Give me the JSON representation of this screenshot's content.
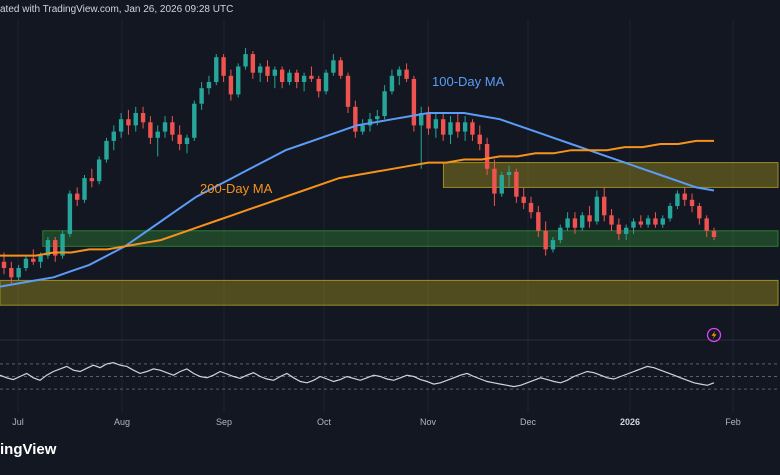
{
  "header": {
    "text": "ated with TradingView.com, Jan 26, 2026 09:28 UTC"
  },
  "brand": {
    "logo_text": "ingView"
  },
  "colors": {
    "background": "#131722",
    "up": "#26a69a",
    "down": "#ef5350",
    "ma100": "#5b9cf6",
    "ma200": "#f7931a",
    "zone_yellow": "#9c8f1f",
    "zone_green": "#2e7d32",
    "rsi": "#d1d4dc",
    "grid": "#1f2330"
  },
  "icons": {
    "replay": "lightning-bolt-icon"
  },
  "chart_data": [
    {
      "type": "candlestick",
      "x_labels": [
        "Jul",
        "Aug",
        "Sep",
        "Oct",
        "Nov",
        "Dec",
        "2026",
        "Feb"
      ],
      "x_labels_bold": [
        "2026"
      ],
      "series_labels": {
        "ma100": "100-Day MA",
        "ma200": "200-Day MA"
      },
      "ylim": [
        0,
        100
      ],
      "candles": [
        {
          "o": 22,
          "h": 25,
          "l": 18,
          "c": 20
        },
        {
          "o": 20,
          "h": 22,
          "l": 15,
          "c": 17
        },
        {
          "o": 17,
          "h": 21,
          "l": 16,
          "c": 20
        },
        {
          "o": 20,
          "h": 24,
          "l": 19,
          "c": 23
        },
        {
          "o": 23,
          "h": 26,
          "l": 21,
          "c": 22
        },
        {
          "o": 22,
          "h": 25,
          "l": 20,
          "c": 24
        },
        {
          "o": 24,
          "h": 30,
          "l": 23,
          "c": 29
        },
        {
          "o": 29,
          "h": 30,
          "l": 22,
          "c": 24
        },
        {
          "o": 24,
          "h": 32,
          "l": 23,
          "c": 31
        },
        {
          "o": 31,
          "h": 45,
          "l": 30,
          "c": 44
        },
        {
          "o": 44,
          "h": 46,
          "l": 40,
          "c": 42
        },
        {
          "o": 42,
          "h": 50,
          "l": 41,
          "c": 49
        },
        {
          "o": 49,
          "h": 52,
          "l": 46,
          "c": 48
        },
        {
          "o": 48,
          "h": 56,
          "l": 47,
          "c": 55
        },
        {
          "o": 55,
          "h": 62,
          "l": 54,
          "c": 61
        },
        {
          "o": 61,
          "h": 66,
          "l": 58,
          "c": 64
        },
        {
          "o": 64,
          "h": 70,
          "l": 62,
          "c": 68
        },
        {
          "o": 68,
          "h": 71,
          "l": 63,
          "c": 66
        },
        {
          "o": 66,
          "h": 72,
          "l": 64,
          "c": 70
        },
        {
          "o": 70,
          "h": 72,
          "l": 65,
          "c": 67
        },
        {
          "o": 67,
          "h": 69,
          "l": 60,
          "c": 62
        },
        {
          "o": 62,
          "h": 66,
          "l": 56,
          "c": 64
        },
        {
          "o": 64,
          "h": 69,
          "l": 62,
          "c": 67
        },
        {
          "o": 67,
          "h": 69,
          "l": 61,
          "c": 63
        },
        {
          "o": 63,
          "h": 66,
          "l": 58,
          "c": 60
        },
        {
          "o": 60,
          "h": 63,
          "l": 57,
          "c": 62
        },
        {
          "o": 62,
          "h": 74,
          "l": 61,
          "c": 73
        },
        {
          "o": 73,
          "h": 80,
          "l": 71,
          "c": 78
        },
        {
          "o": 78,
          "h": 82,
          "l": 76,
          "c": 80
        },
        {
          "o": 80,
          "h": 89,
          "l": 79,
          "c": 88
        },
        {
          "o": 88,
          "h": 89,
          "l": 80,
          "c": 82
        },
        {
          "o": 82,
          "h": 84,
          "l": 74,
          "c": 76
        },
        {
          "o": 76,
          "h": 86,
          "l": 75,
          "c": 85
        },
        {
          "o": 85,
          "h": 91,
          "l": 84,
          "c": 89
        },
        {
          "o": 89,
          "h": 90,
          "l": 81,
          "c": 83
        },
        {
          "o": 83,
          "h": 86,
          "l": 80,
          "c": 85
        },
        {
          "o": 85,
          "h": 87,
          "l": 80,
          "c": 82
        },
        {
          "o": 82,
          "h": 85,
          "l": 78,
          "c": 84
        },
        {
          "o": 84,
          "h": 85,
          "l": 78,
          "c": 80
        },
        {
          "o": 80,
          "h": 84,
          "l": 79,
          "c": 83
        },
        {
          "o": 83,
          "h": 84,
          "l": 78,
          "c": 80
        },
        {
          "o": 80,
          "h": 83,
          "l": 77,
          "c": 82
        },
        {
          "o": 82,
          "h": 85,
          "l": 80,
          "c": 81
        },
        {
          "o": 81,
          "h": 82,
          "l": 75,
          "c": 77
        },
        {
          "o": 77,
          "h": 84,
          "l": 76,
          "c": 83
        },
        {
          "o": 83,
          "h": 89,
          "l": 82,
          "c": 87
        },
        {
          "o": 87,
          "h": 88,
          "l": 81,
          "c": 82
        },
        {
          "o": 82,
          "h": 83,
          "l": 70,
          "c": 72
        },
        {
          "o": 72,
          "h": 74,
          "l": 62,
          "c": 64
        },
        {
          "o": 64,
          "h": 68,
          "l": 63,
          "c": 66
        },
        {
          "o": 66,
          "h": 70,
          "l": 64,
          "c": 68
        },
        {
          "o": 68,
          "h": 71,
          "l": 66,
          "c": 69
        },
        {
          "o": 69,
          "h": 79,
          "l": 68,
          "c": 77
        },
        {
          "o": 77,
          "h": 84,
          "l": 76,
          "c": 82
        },
        {
          "o": 82,
          "h": 85,
          "l": 79,
          "c": 84
        },
        {
          "o": 84,
          "h": 86,
          "l": 80,
          "c": 81
        },
        {
          "o": 81,
          "h": 82,
          "l": 64,
          "c": 66
        },
        {
          "o": 66,
          "h": 72,
          "l": 52,
          "c": 70
        },
        {
          "o": 70,
          "h": 72,
          "l": 63,
          "c": 65
        },
        {
          "o": 65,
          "h": 70,
          "l": 62,
          "c": 68
        },
        {
          "o": 68,
          "h": 70,
          "l": 61,
          "c": 63
        },
        {
          "o": 63,
          "h": 69,
          "l": 60,
          "c": 67
        },
        {
          "o": 67,
          "h": 70,
          "l": 62,
          "c": 64
        },
        {
          "o": 64,
          "h": 69,
          "l": 61,
          "c": 67
        },
        {
          "o": 67,
          "h": 68,
          "l": 61,
          "c": 63
        },
        {
          "o": 63,
          "h": 66,
          "l": 58,
          "c": 60
        },
        {
          "o": 60,
          "h": 62,
          "l": 50,
          "c": 52
        },
        {
          "o": 52,
          "h": 55,
          "l": 40,
          "c": 44
        },
        {
          "o": 44,
          "h": 51,
          "l": 43,
          "c": 50
        },
        {
          "o": 50,
          "h": 53,
          "l": 46,
          "c": 51
        },
        {
          "o": 51,
          "h": 52,
          "l": 41,
          "c": 43
        },
        {
          "o": 43,
          "h": 46,
          "l": 39,
          "c": 41
        },
        {
          "o": 41,
          "h": 43,
          "l": 36,
          "c": 38
        },
        {
          "o": 38,
          "h": 40,
          "l": 30,
          "c": 32
        },
        {
          "o": 32,
          "h": 35,
          "l": 24,
          "c": 26
        },
        {
          "o": 26,
          "h": 30,
          "l": 25,
          "c": 29
        },
        {
          "o": 29,
          "h": 34,
          "l": 28,
          "c": 33
        },
        {
          "o": 33,
          "h": 38,
          "l": 32,
          "c": 36
        },
        {
          "o": 36,
          "h": 38,
          "l": 31,
          "c": 33
        },
        {
          "o": 33,
          "h": 38,
          "l": 32,
          "c": 37
        },
        {
          "o": 37,
          "h": 40,
          "l": 33,
          "c": 35
        },
        {
          "o": 35,
          "h": 45,
          "l": 34,
          "c": 43
        },
        {
          "o": 43,
          "h": 46,
          "l": 35,
          "c": 37
        },
        {
          "o": 37,
          "h": 39,
          "l": 32,
          "c": 34
        },
        {
          "o": 34,
          "h": 36,
          "l": 29,
          "c": 31
        },
        {
          "o": 31,
          "h": 34,
          "l": 29,
          "c": 33
        },
        {
          "o": 33,
          "h": 36,
          "l": 31,
          "c": 35
        },
        {
          "o": 35,
          "h": 37,
          "l": 33,
          "c": 34
        },
        {
          "o": 34,
          "h": 37,
          "l": 33,
          "c": 36
        },
        {
          "o": 36,
          "h": 38,
          "l": 33,
          "c": 34
        },
        {
          "o": 34,
          "h": 37,
          "l": 33,
          "c": 36
        },
        {
          "o": 36,
          "h": 41,
          "l": 35,
          "c": 40
        },
        {
          "o": 40,
          "h": 45,
          "l": 39,
          "c": 44
        },
        {
          "o": 44,
          "h": 46,
          "l": 40,
          "c": 42
        },
        {
          "o": 42,
          "h": 44,
          "l": 38,
          "c": 40
        },
        {
          "o": 40,
          "h": 41,
          "l": 34,
          "c": 36
        },
        {
          "o": 36,
          "h": 37,
          "l": 30,
          "c": 32
        },
        {
          "o": 32,
          "h": 33,
          "l": 29,
          "c": 30
        }
      ],
      "ma100": [
        14,
        15,
        16,
        17,
        19,
        21,
        24,
        27,
        31,
        35,
        39,
        43,
        46,
        49,
        52,
        55,
        58,
        60,
        62,
        64,
        66,
        67,
        68,
        69,
        70,
        70,
        70,
        69,
        68,
        66,
        64,
        62,
        60,
        58,
        56,
        54,
        52,
        50,
        48,
        46,
        45
      ],
      "ma200": [
        24,
        24,
        24,
        25,
        25,
        26,
        26,
        27,
        28,
        29,
        31,
        33,
        35,
        37,
        39,
        41,
        43,
        45,
        47,
        49,
        50,
        51,
        52,
        53,
        54,
        54,
        55,
        55,
        56,
        56,
        57,
        57,
        58,
        58,
        58,
        59,
        59,
        60,
        60,
        61,
        61
      ],
      "zones": [
        {
          "name": "upper-yellow-zone",
          "from": 46,
          "to": 54,
          "start_fraction": 0.57,
          "color": "#9c8f1f"
        },
        {
          "name": "green-support-zone",
          "from": 27,
          "to": 32,
          "start_fraction": 0.055,
          "color": "#2e7d32"
        },
        {
          "name": "lower-yellow-zone",
          "from": 8,
          "to": 16,
          "start_fraction": 0.0,
          "color": "#9c8f1f"
        }
      ]
    },
    {
      "type": "line",
      "name": "",
      "ylim": [
        0,
        100
      ],
      "guides": [
        30,
        50,
        70
      ],
      "values": [
        52,
        48,
        45,
        50,
        55,
        48,
        44,
        52,
        58,
        62,
        66,
        60,
        58,
        63,
        68,
        64,
        70,
        72,
        68,
        66,
        60,
        55,
        58,
        62,
        60,
        56,
        52,
        58,
        62,
        55,
        50,
        48,
        52,
        58,
        54,
        50,
        47,
        52,
        56,
        50,
        46,
        44,
        50,
        55,
        48,
        42,
        40,
        44,
        50,
        46,
        42,
        45,
        50,
        47,
        44,
        48,
        52,
        50,
        46,
        44,
        48,
        52,
        50,
        45,
        42,
        38,
        40,
        44,
        48,
        52,
        55,
        50,
        46,
        42,
        40,
        38,
        36,
        34,
        36,
        40,
        44,
        48,
        45,
        42,
        40,
        44,
        50,
        54,
        58,
        56,
        52,
        48,
        46,
        50,
        54,
        58,
        62,
        66,
        64,
        60,
        56,
        52,
        48,
        44,
        40,
        38,
        36,
        40
      ]
    }
  ]
}
